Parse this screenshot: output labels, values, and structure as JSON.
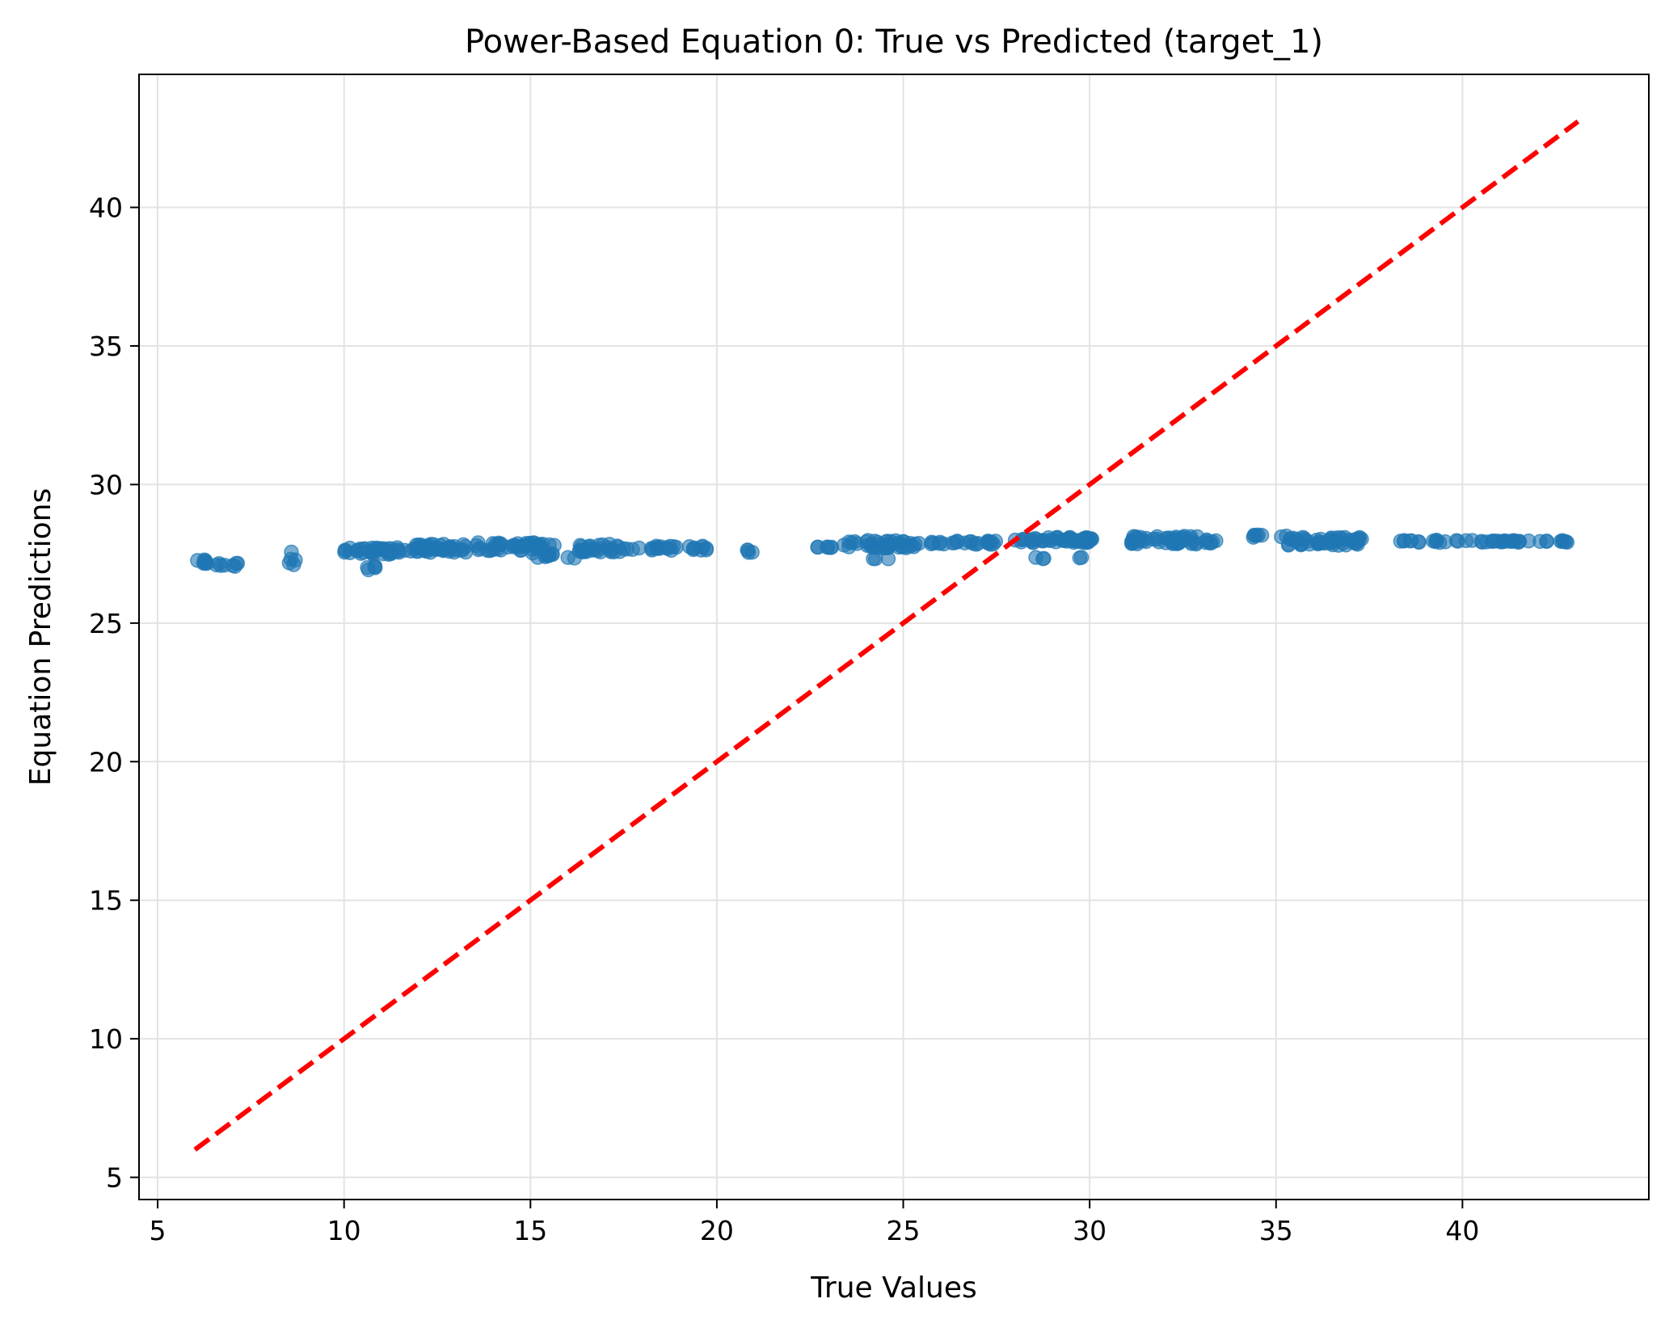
{
  "chart_data": {
    "type": "scatter",
    "title": "Power-Based Equation 0: True vs Predicted (target_1)",
    "xlabel": "True Values",
    "ylabel": "Equation Predictions",
    "xlim": [
      4.5,
      45.0
    ],
    "ylim": [
      4.2,
      44.8
    ],
    "xticks": [
      5,
      10,
      15,
      20,
      25,
      30,
      35,
      40
    ],
    "yticks": [
      5,
      10,
      15,
      20,
      25,
      30,
      35,
      40
    ],
    "grid": true,
    "colors": {
      "points": "#1f77b4",
      "reference_line": "#ff0000"
    },
    "reference_line": {
      "style": "dashed",
      "x": [
        6.0,
        43.1
      ],
      "y": [
        6.0,
        43.1
      ]
    },
    "clusters": [
      {
        "x_range": [
          6.0,
          6.4
        ],
        "y": 27.2,
        "count": 8,
        "spread": 0.08
      },
      {
        "x_range": [
          6.5,
          7.2
        ],
        "y": 27.1,
        "count": 8,
        "spread": 0.08
      },
      {
        "x_range": [
          8.5,
          8.7
        ],
        "y": 27.3,
        "count": 5,
        "spread": 0.35
      },
      {
        "x_range": [
          10.0,
          11.8
        ],
        "y": 27.6,
        "count": 40,
        "spread": 0.12
      },
      {
        "x_range": [
          10.5,
          11.0
        ],
        "y": 27.0,
        "count": 5,
        "spread": 0.08
      },
      {
        "x_range": [
          11.8,
          13.3
        ],
        "y": 27.7,
        "count": 45,
        "spread": 0.15
      },
      {
        "x_range": [
          13.5,
          15.7
        ],
        "y": 27.75,
        "count": 45,
        "spread": 0.15
      },
      {
        "x_range": [
          15.0,
          15.6
        ],
        "y": 27.45,
        "count": 10,
        "spread": 0.08
      },
      {
        "x_range": [
          16.0,
          16.2
        ],
        "y": 27.35,
        "count": 2,
        "spread": 0.05
      },
      {
        "x_range": [
          16.3,
          17.6
        ],
        "y": 27.7,
        "count": 30,
        "spread": 0.15
      },
      {
        "x_range": [
          17.6,
          19.8
        ],
        "y": 27.7,
        "count": 25,
        "spread": 0.08
      },
      {
        "x_range": [
          20.7,
          21.6
        ],
        "y": 27.6,
        "count": 4,
        "spread": 0.05
      },
      {
        "x_range": [
          22.6,
          23.1
        ],
        "y": 27.75,
        "count": 6,
        "spread": 0.05
      },
      {
        "x_range": [
          23.4,
          25.4
        ],
        "y": 27.85,
        "count": 40,
        "spread": 0.14
      },
      {
        "x_range": [
          24.0,
          24.9
        ],
        "y": 27.3,
        "count": 3,
        "spread": 0.03
      },
      {
        "x_range": [
          25.4,
          27.5
        ],
        "y": 27.9,
        "count": 25,
        "spread": 0.06
      },
      {
        "x_range": [
          28.0,
          30.1
        ],
        "y": 28.0,
        "count": 50,
        "spread": 0.1
      },
      {
        "x_range": [
          28.5,
          29.0
        ],
        "y": 27.35,
        "count": 3,
        "spread": 0.03
      },
      {
        "x_range": [
          29.7,
          30.0
        ],
        "y": 27.35,
        "count": 2,
        "spread": 0.03
      },
      {
        "x_range": [
          31.1,
          33.5
        ],
        "y": 28.0,
        "count": 55,
        "spread": 0.15
      },
      {
        "x_range": [
          34.2,
          35.3
        ],
        "y": 28.15,
        "count": 8,
        "spread": 0.06
      },
      {
        "x_range": [
          35.3,
          37.3
        ],
        "y": 27.95,
        "count": 50,
        "spread": 0.15
      },
      {
        "x_range": [
          38.3,
          43.1
        ],
        "y": 27.95,
        "count": 45,
        "spread": 0.04
      }
    ]
  }
}
